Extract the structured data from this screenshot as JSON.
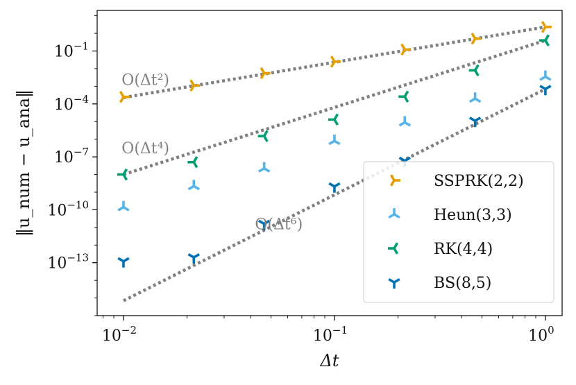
{
  "chart_data": {
    "type": "scatter",
    "xscale": "log",
    "yscale": "log",
    "xlim": [
      0.0075,
      1.2
    ],
    "ylim": [
      1e-16,
      20
    ],
    "xlabel": "Δt",
    "ylabel": "‖u_num − u_ana‖",
    "xticks": [
      {
        "value": 0.01,
        "label_base": "10",
        "label_exp": "−2"
      },
      {
        "value": 0.1,
        "label_base": "10",
        "label_exp": "−1"
      },
      {
        "value": 1,
        "label_base": "10",
        "label_exp": "0"
      }
    ],
    "yticks": [
      {
        "value": 0.1,
        "label_base": "10",
        "label_exp": "−1"
      },
      {
        "value": 0.0001,
        "label_base": "10",
        "label_exp": "−4"
      },
      {
        "value": 1e-07,
        "label_base": "10",
        "label_exp": "−7"
      },
      {
        "value": 1e-10,
        "label_base": "10",
        "label_exp": "−10"
      },
      {
        "value": 1e-13,
        "label_base": "10",
        "label_exp": "−13"
      }
    ],
    "x": [
      0.01,
      0.02154,
      0.04642,
      0.1,
      0.2154,
      0.4642,
      1.0
    ],
    "series": [
      {
        "name": "SSPRK(2,2)",
        "color": "#e69f00",
        "marker": "tri-right",
        "values": [
          0.00025,
          0.0011,
          0.0055,
          0.025,
          0.12,
          0.5,
          2.3
        ]
      },
      {
        "name": "Heun(3,3)",
        "color": "#56b4e9",
        "marker": "tri-down",
        "values": [
          1.4e-10,
          2.2e-09,
          2.2e-08,
          8e-07,
          9e-06,
          0.0002,
          0.0035
        ]
      },
      {
        "name": "RK(4,4)",
        "color": "#009e73",
        "marker": "tri-left",
        "values": [
          1e-08,
          5e-08,
          1.5e-06,
          1.3e-05,
          0.00026,
          0.008,
          0.4
        ]
      },
      {
        "name": "BS(8,5)",
        "color": "#0072b2",
        "marker": "tri-up",
        "values": [
          1.2e-13,
          2e-13,
          1.6e-11,
          2.1e-09,
          6e-08,
          1.1e-05,
          0.0007
        ]
      }
    ],
    "reference_lines": [
      {
        "label": "O(Δt²)",
        "order": 2,
        "color": "#808080",
        "style": "dotted",
        "x_range": [
          0.01,
          1.0
        ],
        "y_range": [
          0.00023,
          2.3
        ],
        "label_anchor": {
          "x": 0.0098,
          "y": 0.0012
        }
      },
      {
        "label": "O(Δt⁴)",
        "order": 4,
        "color": "#808080",
        "style": "dotted",
        "x_range": [
          0.01,
          1.0
        ],
        "y_range": [
          1e-08,
          0.4
        ],
        "label_anchor": {
          "x": 0.0098,
          "y": 1.6e-07
        }
      },
      {
        "label": "O(Δt⁶)",
        "order": 6,
        "color": "#808080",
        "style": "dotted",
        "x_range": [
          0.01,
          1.0
        ],
        "y_range": [
          7e-16,
          0.0007
        ],
        "label_anchor": {
          "x": 0.042,
          "y": 8e-12
        }
      }
    ],
    "legend": {
      "position": "lower-right"
    }
  }
}
